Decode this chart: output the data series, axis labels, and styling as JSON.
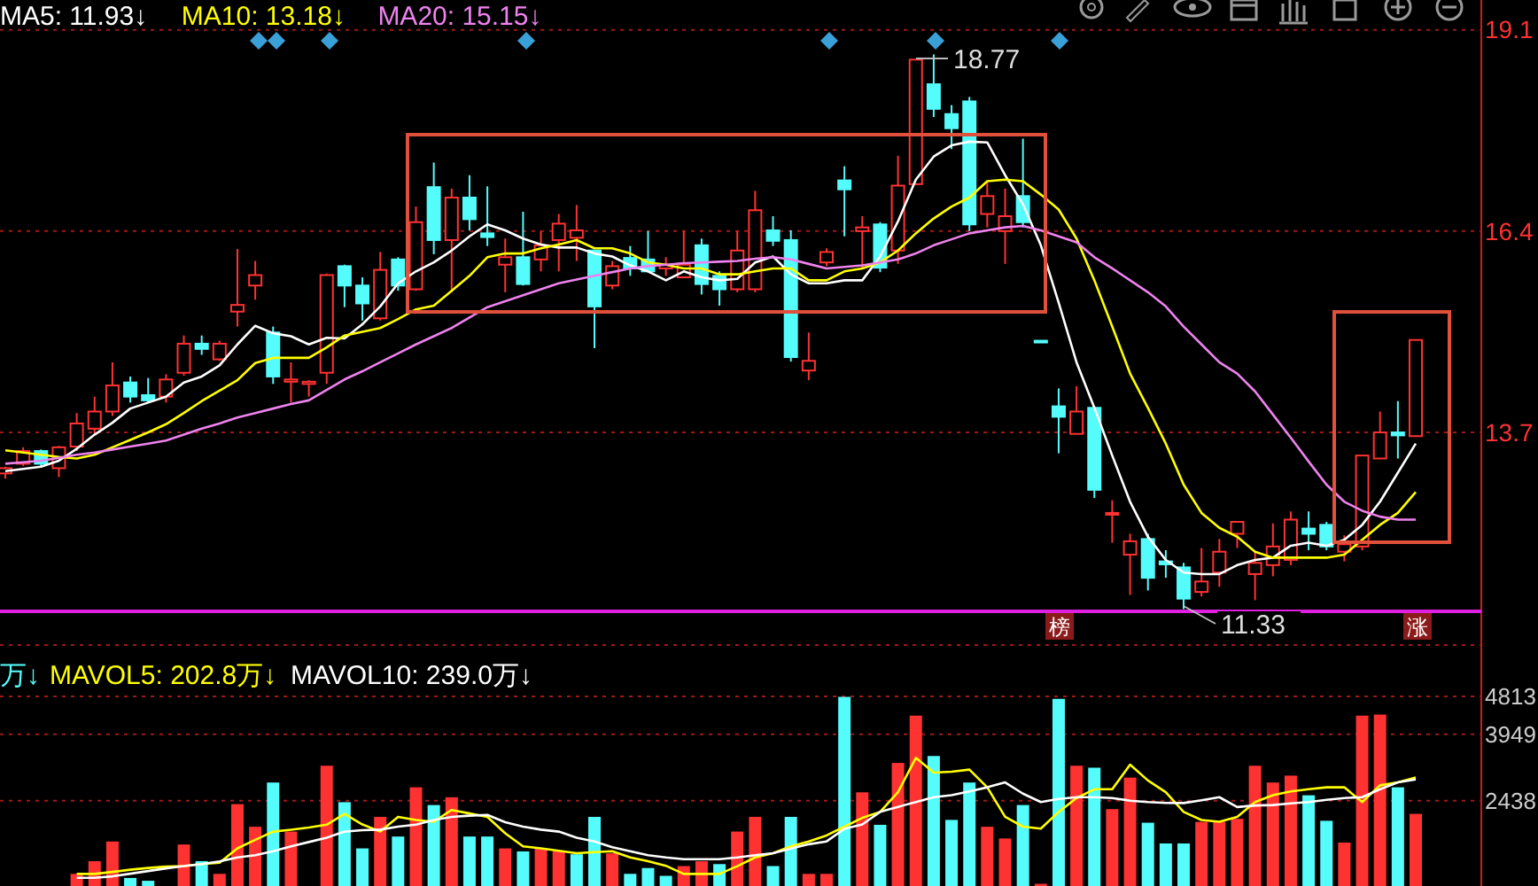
{
  "chart_data": [
    {
      "type": "candlestick",
      "legend": "top left",
      "grid": "y",
      "tick_labels": "y",
      "categories": [
        null,
        null,
        null,
        null,
        null,
        null,
        null,
        null,
        null,
        null,
        null,
        null,
        null,
        null,
        null,
        null,
        null,
        null,
        null,
        null,
        null,
        null,
        null,
        null,
        null,
        null,
        null,
        null,
        null,
        null,
        null,
        null,
        null,
        null,
        null,
        null,
        null,
        null,
        null,
        null,
        null,
        null,
        null,
        null,
        null,
        null,
        null,
        null,
        null,
        null,
        null,
        null,
        null,
        null,
        null,
        null,
        null,
        null,
        null,
        null,
        null,
        null,
        null,
        null,
        null,
        null,
        null,
        null,
        null,
        null,
        null,
        null,
        null,
        null,
        null,
        null,
        null,
        null,
        null,
        null
      ],
      "ylim": [
        11.3,
        19.5
      ],
      "yticks": [
        {
          "value": 13.7,
          "label": "13.7"
        },
        {
          "value": 16.4,
          "label": "16.4"
        },
        {
          "value": 19.1,
          "label": "19.1"
        }
      ],
      "ohlc": [
        [
          13.15,
          13.24,
          13.08,
          13.22
        ],
        [
          13.28,
          13.5,
          13.25,
          13.45
        ],
        [
          13.45,
          13.47,
          13.25,
          13.28
        ],
        [
          13.22,
          13.52,
          13.1,
          13.5
        ],
        [
          13.51,
          13.96,
          13.45,
          13.82
        ],
        [
          13.75,
          14.18,
          13.68,
          13.98
        ],
        [
          13.98,
          14.64,
          13.92,
          14.33
        ],
        [
          14.37,
          14.45,
          14.1,
          14.18
        ],
        [
          14.2,
          14.43,
          14.1,
          14.13
        ],
        [
          14.18,
          14.48,
          14.1,
          14.41
        ],
        [
          14.5,
          15.0,
          14.46,
          14.89
        ],
        [
          14.89,
          15.0,
          14.74,
          14.82
        ],
        [
          14.68,
          14.93,
          14.66,
          14.89
        ],
        [
          15.32,
          16.16,
          15.12,
          15.41
        ],
        [
          15.67,
          16.0,
          15.48,
          15.81
        ],
        [
          15.04,
          15.12,
          14.35,
          14.45
        ],
        [
          14.38,
          14.64,
          14.1,
          14.41
        ],
        [
          14.35,
          14.4,
          14.18,
          14.38
        ],
        [
          14.5,
          15.83,
          14.35,
          15.81
        ],
        [
          15.93,
          15.95,
          15.38,
          15.67
        ],
        [
          15.67,
          15.78,
          15.2,
          15.43
        ],
        [
          15.23,
          16.12,
          15.2,
          15.88
        ],
        [
          16.02,
          16.05,
          15.6,
          15.67
        ],
        [
          15.62,
          16.73,
          15.6,
          16.52
        ],
        [
          16.99,
          17.32,
          16.09,
          16.28
        ],
        [
          16.28,
          16.97,
          15.58,
          16.85
        ],
        [
          16.85,
          17.15,
          16.41,
          16.56
        ],
        [
          16.37,
          17.0,
          16.2,
          16.32
        ],
        [
          15.95,
          16.3,
          15.58,
          16.05
        ],
        [
          16.05,
          16.66,
          15.67,
          15.69
        ],
        [
          16.02,
          16.4,
          15.86,
          16.21
        ],
        [
          16.28,
          16.63,
          15.86,
          16.5
        ],
        [
          16.31,
          16.75,
          16.0,
          16.41
        ],
        [
          16.14,
          16.14,
          14.83,
          15.39
        ],
        [
          15.67,
          16.0,
          15.62,
          15.93
        ],
        [
          16.04,
          16.2,
          15.8,
          15.9
        ],
        [
          16.02,
          16.4,
          15.86,
          15.86
        ],
        [
          15.9,
          16.05,
          15.8,
          15.95
        ],
        [
          15.78,
          16.4,
          15.78,
          15.95
        ],
        [
          16.21,
          16.3,
          15.55,
          15.69
        ],
        [
          15.8,
          15.86,
          15.4,
          15.62
        ],
        [
          15.62,
          16.4,
          15.58,
          16.14
        ],
        [
          15.62,
          16.94,
          15.58,
          16.68
        ],
        [
          16.41,
          16.6,
          16.2,
          16.27
        ],
        [
          16.28,
          16.41,
          14.65,
          14.71
        ],
        [
          14.53,
          15.04,
          14.4,
          14.66
        ],
        [
          15.98,
          16.17,
          15.93,
          16.12
        ],
        [
          17.08,
          17.27,
          16.33,
          16.96
        ],
        [
          16.4,
          16.6,
          15.9,
          16.45
        ],
        [
          16.49,
          16.52,
          15.85,
          15.91
        ],
        [
          16.14,
          17.41,
          15.96,
          17.01
        ],
        [
          17.03,
          18.7,
          17.03,
          18.7
        ],
        [
          18.37,
          18.77,
          17.93,
          18.04
        ],
        [
          17.97,
          18.09,
          17.5,
          17.78
        ],
        [
          18.14,
          18.2,
          16.4,
          16.49
        ],
        [
          16.63,
          17.06,
          16.45,
          16.87
        ],
        [
          16.4,
          16.97,
          15.96,
          16.6
        ],
        [
          16.87,
          17.64,
          16.45,
          16.52
        ],
        [
          14.93,
          14.93,
          14.91,
          14.91
        ],
        [
          14.05,
          14.29,
          13.42,
          13.91
        ],
        [
          13.68,
          14.32,
          13.68,
          13.98
        ],
        [
          14.03,
          14.05,
          12.82,
          12.93
        ],
        [
          12.6,
          12.79,
          12.22,
          12.62
        ],
        [
          12.06,
          12.34,
          11.52,
          12.24
        ],
        [
          12.27,
          12.34,
          11.58,
          11.75
        ],
        [
          11.97,
          12.12,
          11.75,
          11.93
        ],
        [
          11.89,
          11.95,
          11.33,
          11.47
        ],
        [
          11.56,
          12.15,
          11.5,
          11.7
        ],
        [
          11.82,
          12.27,
          11.63,
          12.1
        ],
        [
          12.34,
          12.5,
          12.15,
          12.5
        ],
        [
          11.8,
          12.1,
          11.45,
          11.95
        ],
        [
          11.92,
          12.48,
          11.77,
          12.17
        ],
        [
          11.99,
          12.64,
          11.92,
          12.53
        ],
        [
          12.41,
          12.64,
          12.12,
          12.34
        ],
        [
          12.46,
          12.5,
          12.12,
          12.17
        ],
        [
          12.1,
          12.32,
          11.97,
          12.2
        ],
        [
          12.17,
          13.39,
          12.12,
          13.39
        ],
        [
          13.35,
          13.98,
          13.35,
          13.7
        ],
        [
          13.7,
          14.12,
          13.35,
          13.66
        ],
        [
          13.65,
          14.94,
          13.65,
          14.94
        ]
      ],
      "series": [
        {
          "type": "line",
          "name": "MA5: 11.93↓",
          "color": "#ffffff",
          "values": [
            13.18,
            13.21,
            13.24,
            13.32,
            13.48,
            13.67,
            13.83,
            14.02,
            14.1,
            14.18,
            14.37,
            14.45,
            14.6,
            14.88,
            15.13,
            15.03,
            14.99,
            14.88,
            14.97,
            14.96,
            15.15,
            15.39,
            15.7,
            15.86,
            15.98,
            16.14,
            16.33,
            16.49,
            16.41,
            16.3,
            16.22,
            16.18,
            16.18,
            16.1,
            16.06,
            15.94,
            15.86,
            15.74,
            15.86,
            15.78,
            15.74,
            15.76,
            15.98,
            16.06,
            15.82,
            15.7,
            15.7,
            15.74,
            15.74,
            16.06,
            16.53,
            17.09,
            17.4,
            17.55,
            17.6,
            17.59,
            17.15,
            16.76,
            16.21,
            15.44,
            14.64,
            14.03,
            13.39,
            12.77,
            12.3,
            11.99,
            11.82,
            11.8,
            11.8,
            11.92,
            11.99,
            12.02,
            12.18,
            12.22,
            12.18,
            12.26,
            12.46,
            12.77,
            13.16,
            13.55
          ]
        },
        {
          "type": "line",
          "name": "MA10: 13.18↓",
          "color": "#ffff00",
          "values": [
            13.46,
            13.43,
            13.4,
            13.37,
            13.35,
            13.4,
            13.5,
            13.6,
            13.7,
            13.81,
            13.96,
            14.12,
            14.26,
            14.4,
            14.63,
            14.7,
            14.7,
            14.7,
            14.84,
            15.0,
            15.05,
            15.1,
            15.22,
            15.35,
            15.4,
            15.6,
            15.8,
            16.05,
            16.1,
            16.1,
            16.17,
            16.22,
            16.28,
            16.17,
            16.17,
            16.1,
            15.98,
            15.95,
            15.9,
            15.9,
            15.82,
            15.82,
            15.86,
            15.9,
            15.9,
            15.74,
            15.74,
            15.86,
            15.9,
            15.98,
            16.14,
            16.37,
            16.57,
            16.73,
            16.85,
            17.07,
            17.09,
            17.07,
            16.89,
            16.69,
            16.3,
            15.74,
            15.12,
            14.49,
            14.03,
            13.55,
            13.0,
            12.62,
            12.42,
            12.3,
            12.1,
            12.02,
            12.02,
            12.02,
            12.02,
            12.06,
            12.26,
            12.46,
            12.62,
            12.9
          ]
        },
        {
          "type": "line",
          "name": "MA20: 15.15↓",
          "color": "#ee82ee",
          "values": [
            13.28,
            13.3,
            13.32,
            13.36,
            13.4,
            13.43,
            13.47,
            13.51,
            13.55,
            13.59,
            13.67,
            13.75,
            13.82,
            13.9,
            13.96,
            14.02,
            14.08,
            14.13,
            14.27,
            14.41,
            14.52,
            14.64,
            14.76,
            14.88,
            14.99,
            15.1,
            15.24,
            15.38,
            15.46,
            15.54,
            15.62,
            15.7,
            15.75,
            15.8,
            15.85,
            15.9,
            15.93,
            15.95,
            15.97,
            15.98,
            15.99,
            16.0,
            16.03,
            16.05,
            16.02,
            15.96,
            15.9,
            15.92,
            15.94,
            15.98,
            16.02,
            16.1,
            16.21,
            16.29,
            16.37,
            16.41,
            16.45,
            16.47,
            16.41,
            16.33,
            16.25,
            16.05,
            15.9,
            15.74,
            15.58,
            15.39,
            15.12,
            14.88,
            14.64,
            14.49,
            14.25,
            13.94,
            13.63,
            13.31,
            13.0,
            12.77,
            12.65,
            12.57,
            12.53,
            12.53
          ]
        }
      ],
      "annotations": [
        "榜",
        "涨",
        "18.77",
        "11.33"
      ]
    },
    {
      "type": "bar",
      "legend": "top left",
      "grid": "y",
      "tick_labels": "y",
      "categories": [
        null,
        null,
        null,
        null,
        null,
        null,
        null,
        null,
        null,
        null,
        null,
        null,
        null,
        null,
        null,
        null,
        null,
        null,
        null,
        null,
        null,
        null,
        null,
        null,
        null,
        null,
        null,
        null,
        null,
        null,
        null,
        null,
        null,
        null,
        null,
        null,
        null,
        null,
        null,
        null,
        null,
        null,
        null,
        null,
        null,
        null,
        null,
        null,
        null,
        null,
        null,
        null,
        null,
        null,
        null,
        null,
        null,
        null,
        null,
        null,
        null,
        null,
        null,
        null,
        null,
        null,
        null,
        null,
        null,
        null,
        null,
        null,
        null,
        null,
        null,
        null,
        null,
        null,
        null,
        null
      ],
      "ylim": [
        500,
        5980
      ],
      "yticks": [
        2438,
        3949,
        4813
      ],
      "series": [
        {
          "type": "bar",
          "colors": [
            null,
            null,
            null,
            null,
            "#ff3232",
            "#ff3232",
            "#ff3232",
            "#54fcfc",
            "#54fcfc",
            null,
            "#ff3232",
            "#54fcfc",
            "#ff3232",
            "#ff3232",
            "#ff3232",
            "#54fcfc",
            "#ff3232",
            null,
            "#ff3232",
            "#54fcfc",
            "#54fcfc",
            "#ff3232",
            "#54fcfc",
            "#ff3232",
            "#54fcfc",
            "#ff3232",
            "#54fcfc",
            "#54fcfc",
            "#ff3232",
            "#54fcfc",
            "#ff3232",
            "#ff3232",
            "#54fcfc",
            "#54fcfc",
            "#ff3232",
            "#54fcfc",
            "#54fcfc",
            "#54fcfc",
            "#ff3232",
            "#ff3232",
            "#54fcfc",
            "#ff3232",
            "#ff3232",
            "#54fcfc",
            "#54fcfc",
            "#ff3232",
            "#ff3232",
            "#54fcfc",
            "#ff3232",
            "#54fcfc",
            "#ff3232",
            "#ff3232",
            "#54fcfc",
            "#54fcfc",
            "#54fcfc",
            "#ff3232",
            "#ff3232",
            "#54fcfc",
            "#ff3232",
            "#54fcfc",
            "#ff3232",
            "#54fcfc",
            "#ff3232",
            "#ff3232",
            "#54fcfc",
            "#54fcfc",
            "#54fcfc",
            "#ff3232",
            "#ff3232",
            "#ff3232",
            "#ff3232",
            "#ff3232",
            "#ff3232",
            "#54fcfc",
            "#54fcfc",
            "#ff3232",
            "#ff3232",
            "#ff3232",
            "#54fcfc",
            "#ff3232"
          ],
          "values": [
            null,
            null,
            null,
            null,
            776,
            1065,
            1512,
            683,
            619,
            null,
            1444,
            1065,
            776,
            2362,
            1847,
            2853,
            1738,
            null,
            3235,
            2406,
            1355,
            2072,
            1625,
            2744,
            2341,
            2518,
            1625,
            1625,
            1355,
            1287,
            1355,
            1287,
            1222,
            2072,
            1243,
            776,
            909,
            731,
            953,
            1065,
            998,
            1738,
            2072,
            953,
            2072,
            776,
            776,
            4801,
            2630,
            1891,
            3299,
            4374,
            3456,
            2003,
            2853,
            1847,
            1581,
            2341,
            550,
            4756,
            3235,
            3190,
            2249,
            2965,
            1939,
            1468,
            1468,
            1959,
            1959,
            2028,
            3235,
            2853,
            3010,
            2563,
            1983,
            1488,
            4374,
            4398,
            2744,
            2140
          ]
        },
        {
          "type": "line",
          "name": "MAVOL5: 202.8万↓",
          "color": "#ffff00",
          "values": [
            null,
            null,
            null,
            null,
            775,
            775,
            820,
            870,
            910,
            940,
            954,
            1000,
            1030,
            1357,
            1550,
            1737,
            1780,
            1830,
            1894,
            2140,
            1900,
            1737,
            2073,
            2000,
            1961,
            2229,
            2150,
            2073,
            1700,
            1400,
            1357,
            1300,
            1245,
            1270,
            1290,
            1150,
            1066,
            960,
            775,
            775,
            775,
            950,
            1150,
            1245,
            1400,
            1514,
            1650,
            1849,
            2050,
            2185,
            2632,
            3415,
            3080,
            3100,
            3147,
            2744,
            2073,
            1850,
            1805,
            2185,
            2500,
            2700,
            2700,
            3259,
            2900,
            2632,
            2185,
            2000,
            1961,
            2073,
            2408,
            2565,
            2650,
            2700,
            2744,
            2744,
            2408,
            2789,
            2856,
            2968
          ]
        },
        {
          "type": "line",
          "name": "MAVOL10: 239.0万↓",
          "color": "#ffffff",
          "values": [
            null,
            null,
            null,
            null,
            685,
            685,
            720,
            780,
            840,
            900,
            954,
            1000,
            1060,
            1150,
            1200,
            1290,
            1402,
            1500,
            1600,
            1737,
            1770,
            1782,
            1850,
            1894,
            2000,
            2073,
            2100,
            2118,
            1950,
            1850,
            1782,
            1737,
            1600,
            1514,
            1380,
            1290,
            1200,
            1150,
            1110,
            1110,
            1110,
            1150,
            1200,
            1245,
            1350,
            1450,
            1514,
            1800,
            1900,
            2185,
            2300,
            2408,
            2520,
            2565,
            2650,
            2744,
            2856,
            2600,
            2408,
            2480,
            2520,
            2520,
            2500,
            2440,
            2410,
            2390,
            2386,
            2450,
            2520,
            2296,
            2330,
            2341,
            2380,
            2408,
            2460,
            2500,
            2520,
            2700,
            2856,
            2923
          ]
        }
      ],
      "annotations": [
        "万↓"
      ]
    }
  ]
}
